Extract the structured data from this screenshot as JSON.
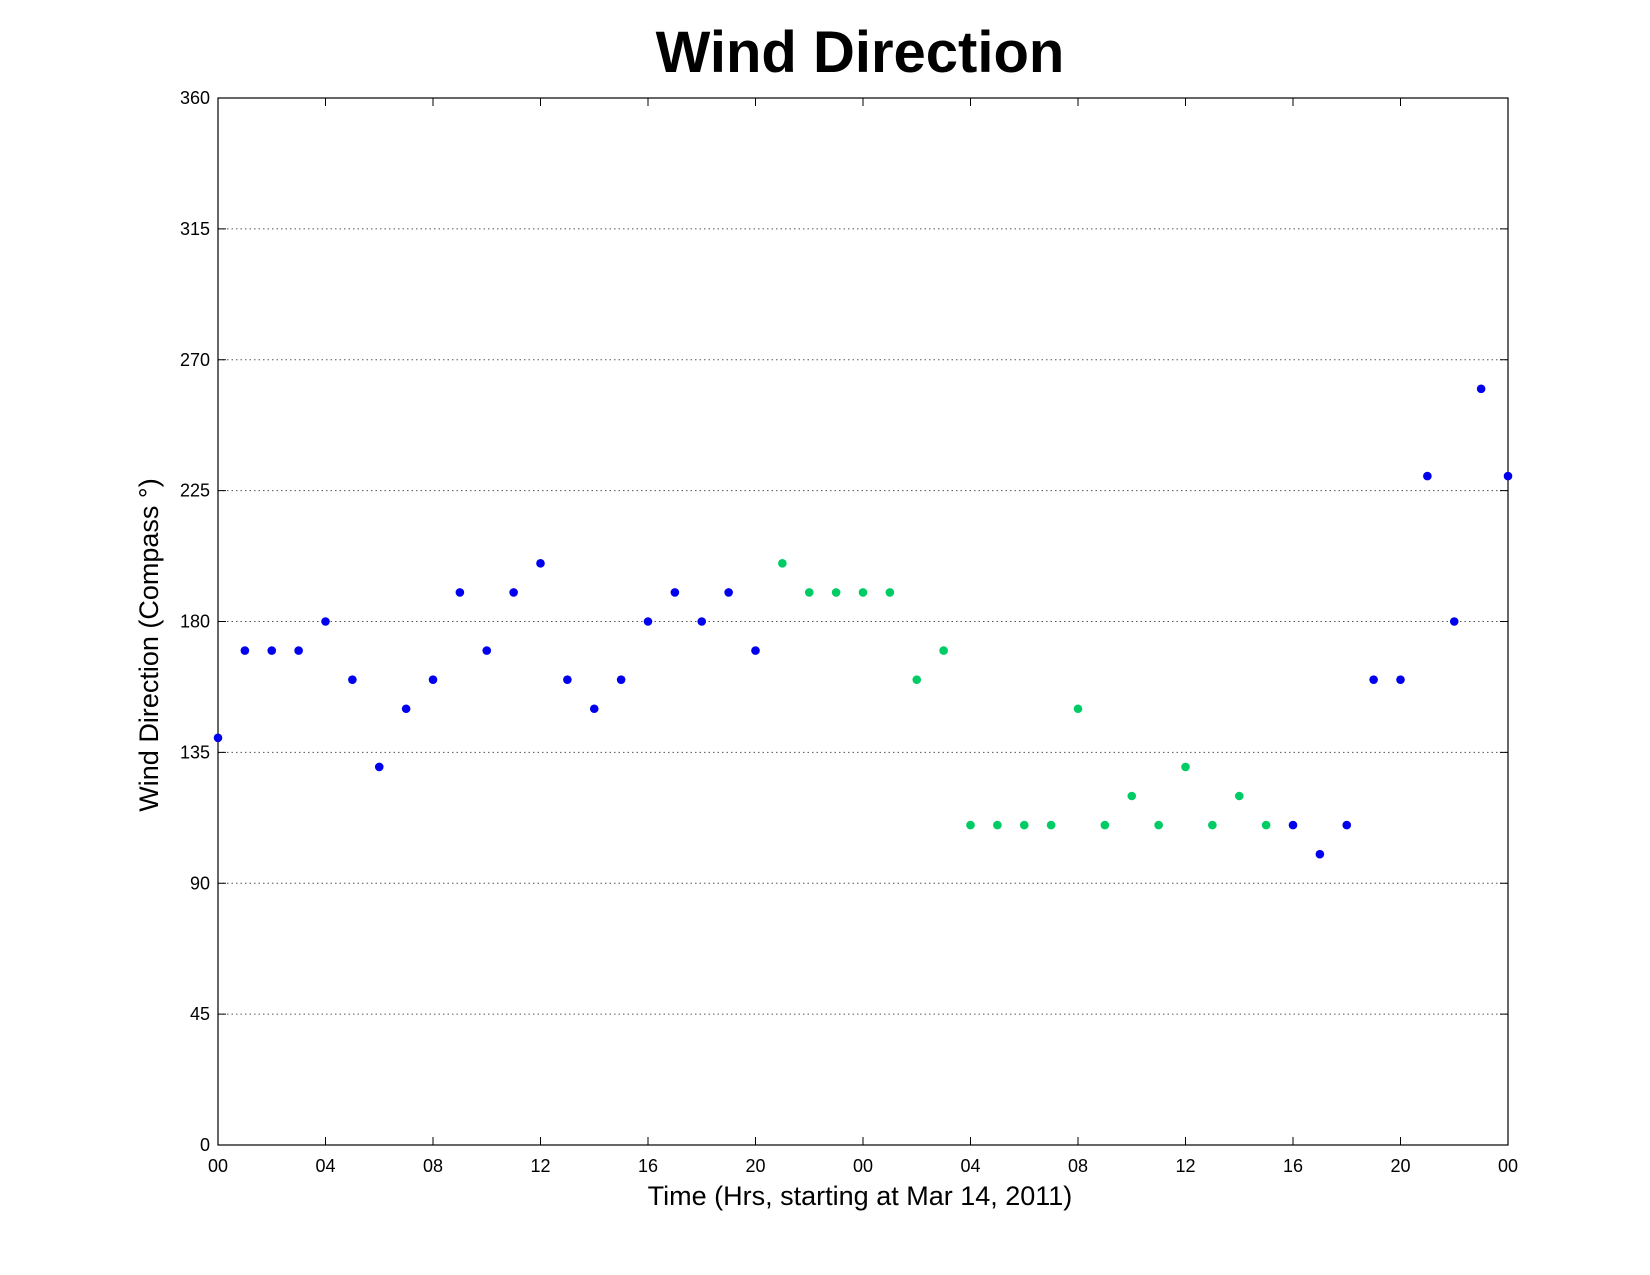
{
  "chart_data": {
    "type": "scatter",
    "title": "Wind Direction",
    "xlabel": "Time (Hrs, starting at Mar 14, 2011)",
    "ylabel": "Wind Direction (Compass  °)",
    "xlim": [
      0,
      48
    ],
    "ylim": [
      0,
      360
    ],
    "x_ticks": [
      0,
      4,
      8,
      12,
      16,
      20,
      24,
      28,
      32,
      36,
      40,
      44,
      48
    ],
    "x_tick_labels": [
      "00",
      "04",
      "08",
      "12",
      "16",
      "20",
      "00",
      "04",
      "08",
      "12",
      "16",
      "20",
      "00"
    ],
    "y_ticks": [
      0,
      45,
      90,
      135,
      180,
      225,
      270,
      315,
      360
    ],
    "y_tick_labels": [
      "0",
      "45",
      "90",
      "135",
      "180",
      "225",
      "270",
      "315",
      "360"
    ],
    "grid": "horizontal-dotted",
    "colors": {
      "blue": "#0000ee",
      "green": "#00cc66"
    },
    "points": [
      {
        "x": 0,
        "y": 140,
        "color": "blue"
      },
      {
        "x": 1,
        "y": 170,
        "color": "blue"
      },
      {
        "x": 2,
        "y": 170,
        "color": "blue"
      },
      {
        "x": 3,
        "y": 170,
        "color": "blue"
      },
      {
        "x": 4,
        "y": 180,
        "color": "blue"
      },
      {
        "x": 5,
        "y": 160,
        "color": "blue"
      },
      {
        "x": 6,
        "y": 130,
        "color": "blue"
      },
      {
        "x": 7,
        "y": 150,
        "color": "blue"
      },
      {
        "x": 8,
        "y": 160,
        "color": "blue"
      },
      {
        "x": 9,
        "y": 190,
        "color": "blue"
      },
      {
        "x": 10,
        "y": 170,
        "color": "blue"
      },
      {
        "x": 11,
        "y": 190,
        "color": "blue"
      },
      {
        "x": 12,
        "y": 200,
        "color": "blue"
      },
      {
        "x": 13,
        "y": 160,
        "color": "blue"
      },
      {
        "x": 14,
        "y": 150,
        "color": "blue"
      },
      {
        "x": 15,
        "y": 160,
        "color": "blue"
      },
      {
        "x": 16,
        "y": 180,
        "color": "blue"
      },
      {
        "x": 17,
        "y": 190,
        "color": "blue"
      },
      {
        "x": 18,
        "y": 180,
        "color": "blue"
      },
      {
        "x": 19,
        "y": 190,
        "color": "blue"
      },
      {
        "x": 20,
        "y": 170,
        "color": "blue"
      },
      {
        "x": 21,
        "y": 200,
        "color": "green"
      },
      {
        "x": 22,
        "y": 190,
        "color": "green"
      },
      {
        "x": 23,
        "y": 190,
        "color": "green"
      },
      {
        "x": 24,
        "y": 190,
        "color": "green"
      },
      {
        "x": 25,
        "y": 190,
        "color": "green"
      },
      {
        "x": 26,
        "y": 160,
        "color": "green"
      },
      {
        "x": 27,
        "y": 170,
        "color": "green"
      },
      {
        "x": 28,
        "y": 110,
        "color": "green"
      },
      {
        "x": 29,
        "y": 110,
        "color": "green"
      },
      {
        "x": 30,
        "y": 110,
        "color": "green"
      },
      {
        "x": 31,
        "y": 110,
        "color": "green"
      },
      {
        "x": 32,
        "y": 150,
        "color": "green"
      },
      {
        "x": 33,
        "y": 110,
        "color": "green"
      },
      {
        "x": 34,
        "y": 120,
        "color": "green"
      },
      {
        "x": 35,
        "y": 110,
        "color": "green"
      },
      {
        "x": 36,
        "y": 130,
        "color": "green"
      },
      {
        "x": 37,
        "y": 110,
        "color": "green"
      },
      {
        "x": 38,
        "y": 120,
        "color": "green"
      },
      {
        "x": 39,
        "y": 110,
        "color": "green"
      },
      {
        "x": 40,
        "y": 110,
        "color": "blue"
      },
      {
        "x": 41,
        "y": 100,
        "color": "blue"
      },
      {
        "x": 42,
        "y": 110,
        "color": "blue"
      },
      {
        "x": 43,
        "y": 160,
        "color": "blue"
      },
      {
        "x": 44,
        "y": 160,
        "color": "blue"
      },
      {
        "x": 45,
        "y": 230,
        "color": "blue"
      },
      {
        "x": 46,
        "y": 180,
        "color": "blue"
      },
      {
        "x": 47,
        "y": 260,
        "color": "blue"
      },
      {
        "x": 48,
        "y": 230,
        "color": "blue"
      }
    ]
  }
}
